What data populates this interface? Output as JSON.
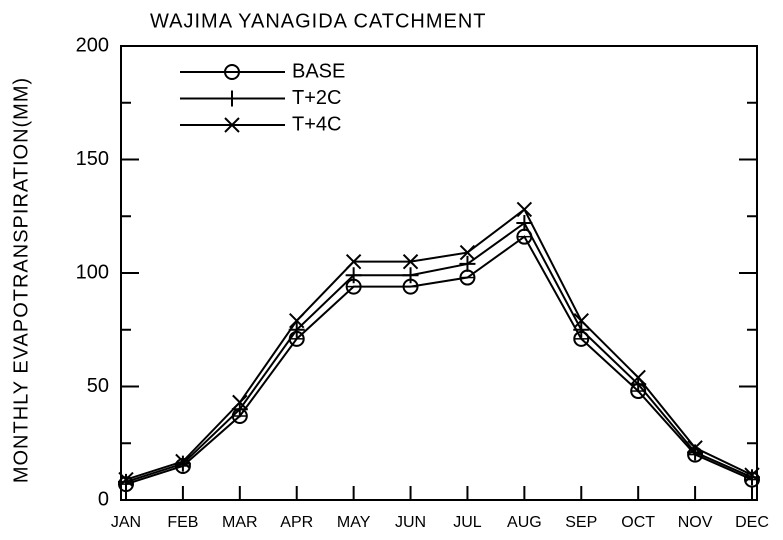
{
  "chart_data": {
    "type": "line",
    "title": "WAJIMA YANAGIDA CATCHMENT",
    "ylabel": "MONTHLY EVAPOTRANSPIRATION(MM)",
    "categories": [
      "JAN",
      "FEB",
      "MAR",
      "APR",
      "MAY",
      "JUN",
      "JUL",
      "AUG",
      "SEP",
      "OCT",
      "NOV",
      "DEC"
    ],
    "series": [
      {
        "name": "BASE",
        "color": "#000000",
        "marker": "circle",
        "values": [
          7,
          15,
          37,
          71,
          94,
          94,
          98,
          116,
          71,
          48,
          20,
          9
        ]
      },
      {
        "name": "T+2C",
        "color": "#000000",
        "marker": "plus",
        "values": [
          8,
          16,
          40,
          75,
          99,
          99,
          104,
          122,
          75,
          51,
          21,
          10
        ]
      },
      {
        "name": "T+4C",
        "color": "#000000",
        "marker": "x",
        "values": [
          9,
          17,
          43,
          79,
          105,
          105,
          109,
          128,
          79,
          54,
          23,
          11
        ]
      }
    ],
    "ylim": [
      0,
      200
    ],
    "yticks": [
      0,
      50,
      100,
      150,
      200
    ],
    "yminor_ticks": [
      25,
      75,
      125,
      175
    ],
    "grid": false,
    "legend": "upper left"
  }
}
